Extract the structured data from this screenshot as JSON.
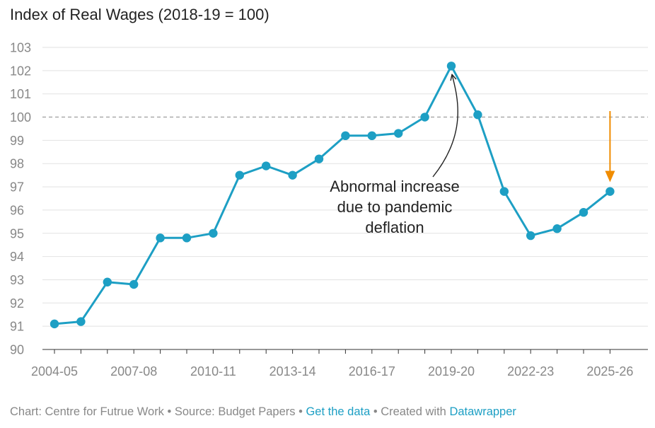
{
  "chart_data": {
    "type": "line",
    "title": "Index of Real Wages (2018-19 = 100)",
    "xlabel": "",
    "ylabel": "",
    "ylim": [
      90,
      103
    ],
    "yticks": [
      90,
      91,
      92,
      93,
      94,
      95,
      96,
      97,
      98,
      99,
      100,
      101,
      102,
      103
    ],
    "categories": [
      "2004-05",
      "2005-06",
      "2006-07",
      "2007-08",
      "2008-09",
      "2009-10",
      "2010-11",
      "2011-12",
      "2012-13",
      "2013-14",
      "2014-15",
      "2015-16",
      "2016-17",
      "2017-18",
      "2018-19",
      "2019-20",
      "2020-21",
      "2021-22",
      "2022-23",
      "2023-24",
      "2024-25",
      "2025-26"
    ],
    "x_tick_labels": [
      "2004-05",
      "2007-08",
      "2010-11",
      "2013-14",
      "2016-17",
      "2019-20",
      "2022-23",
      "2025-26"
    ],
    "series": [
      {
        "values": [
          91.1,
          91.2,
          92.9,
          92.8,
          94.8,
          94.8,
          95.0,
          97.5,
          97.9,
          97.5,
          98.2,
          99.2,
          99.2,
          99.3,
          100.0,
          102.2,
          100.1,
          96.8,
          94.9,
          95.2,
          95.9,
          96.8
        ]
      }
    ],
    "reference_line": 100,
    "grid": true,
    "annotation": {
      "lines": [
        "Abnormal increase",
        "due to pandemic",
        "deflation"
      ],
      "points_to": "2019-20"
    },
    "highlight_arrow": {
      "category": "2025-26",
      "from": 100.2,
      "to": 97.2
    },
    "colors": {
      "line": "#1d9fc4",
      "reference": "#aaaaaa",
      "highlight_arrow": "#f08c00",
      "grid": "#e2e2e2",
      "tick_text": "#888888"
    }
  },
  "footer": {
    "text_prefix": "Chart: Centre for Futrue Work • Source: Budget Papers • ",
    "get_data_link": "Get the data",
    "text_middle": " • Created with ",
    "datawrapper_link": "Datawrapper"
  }
}
